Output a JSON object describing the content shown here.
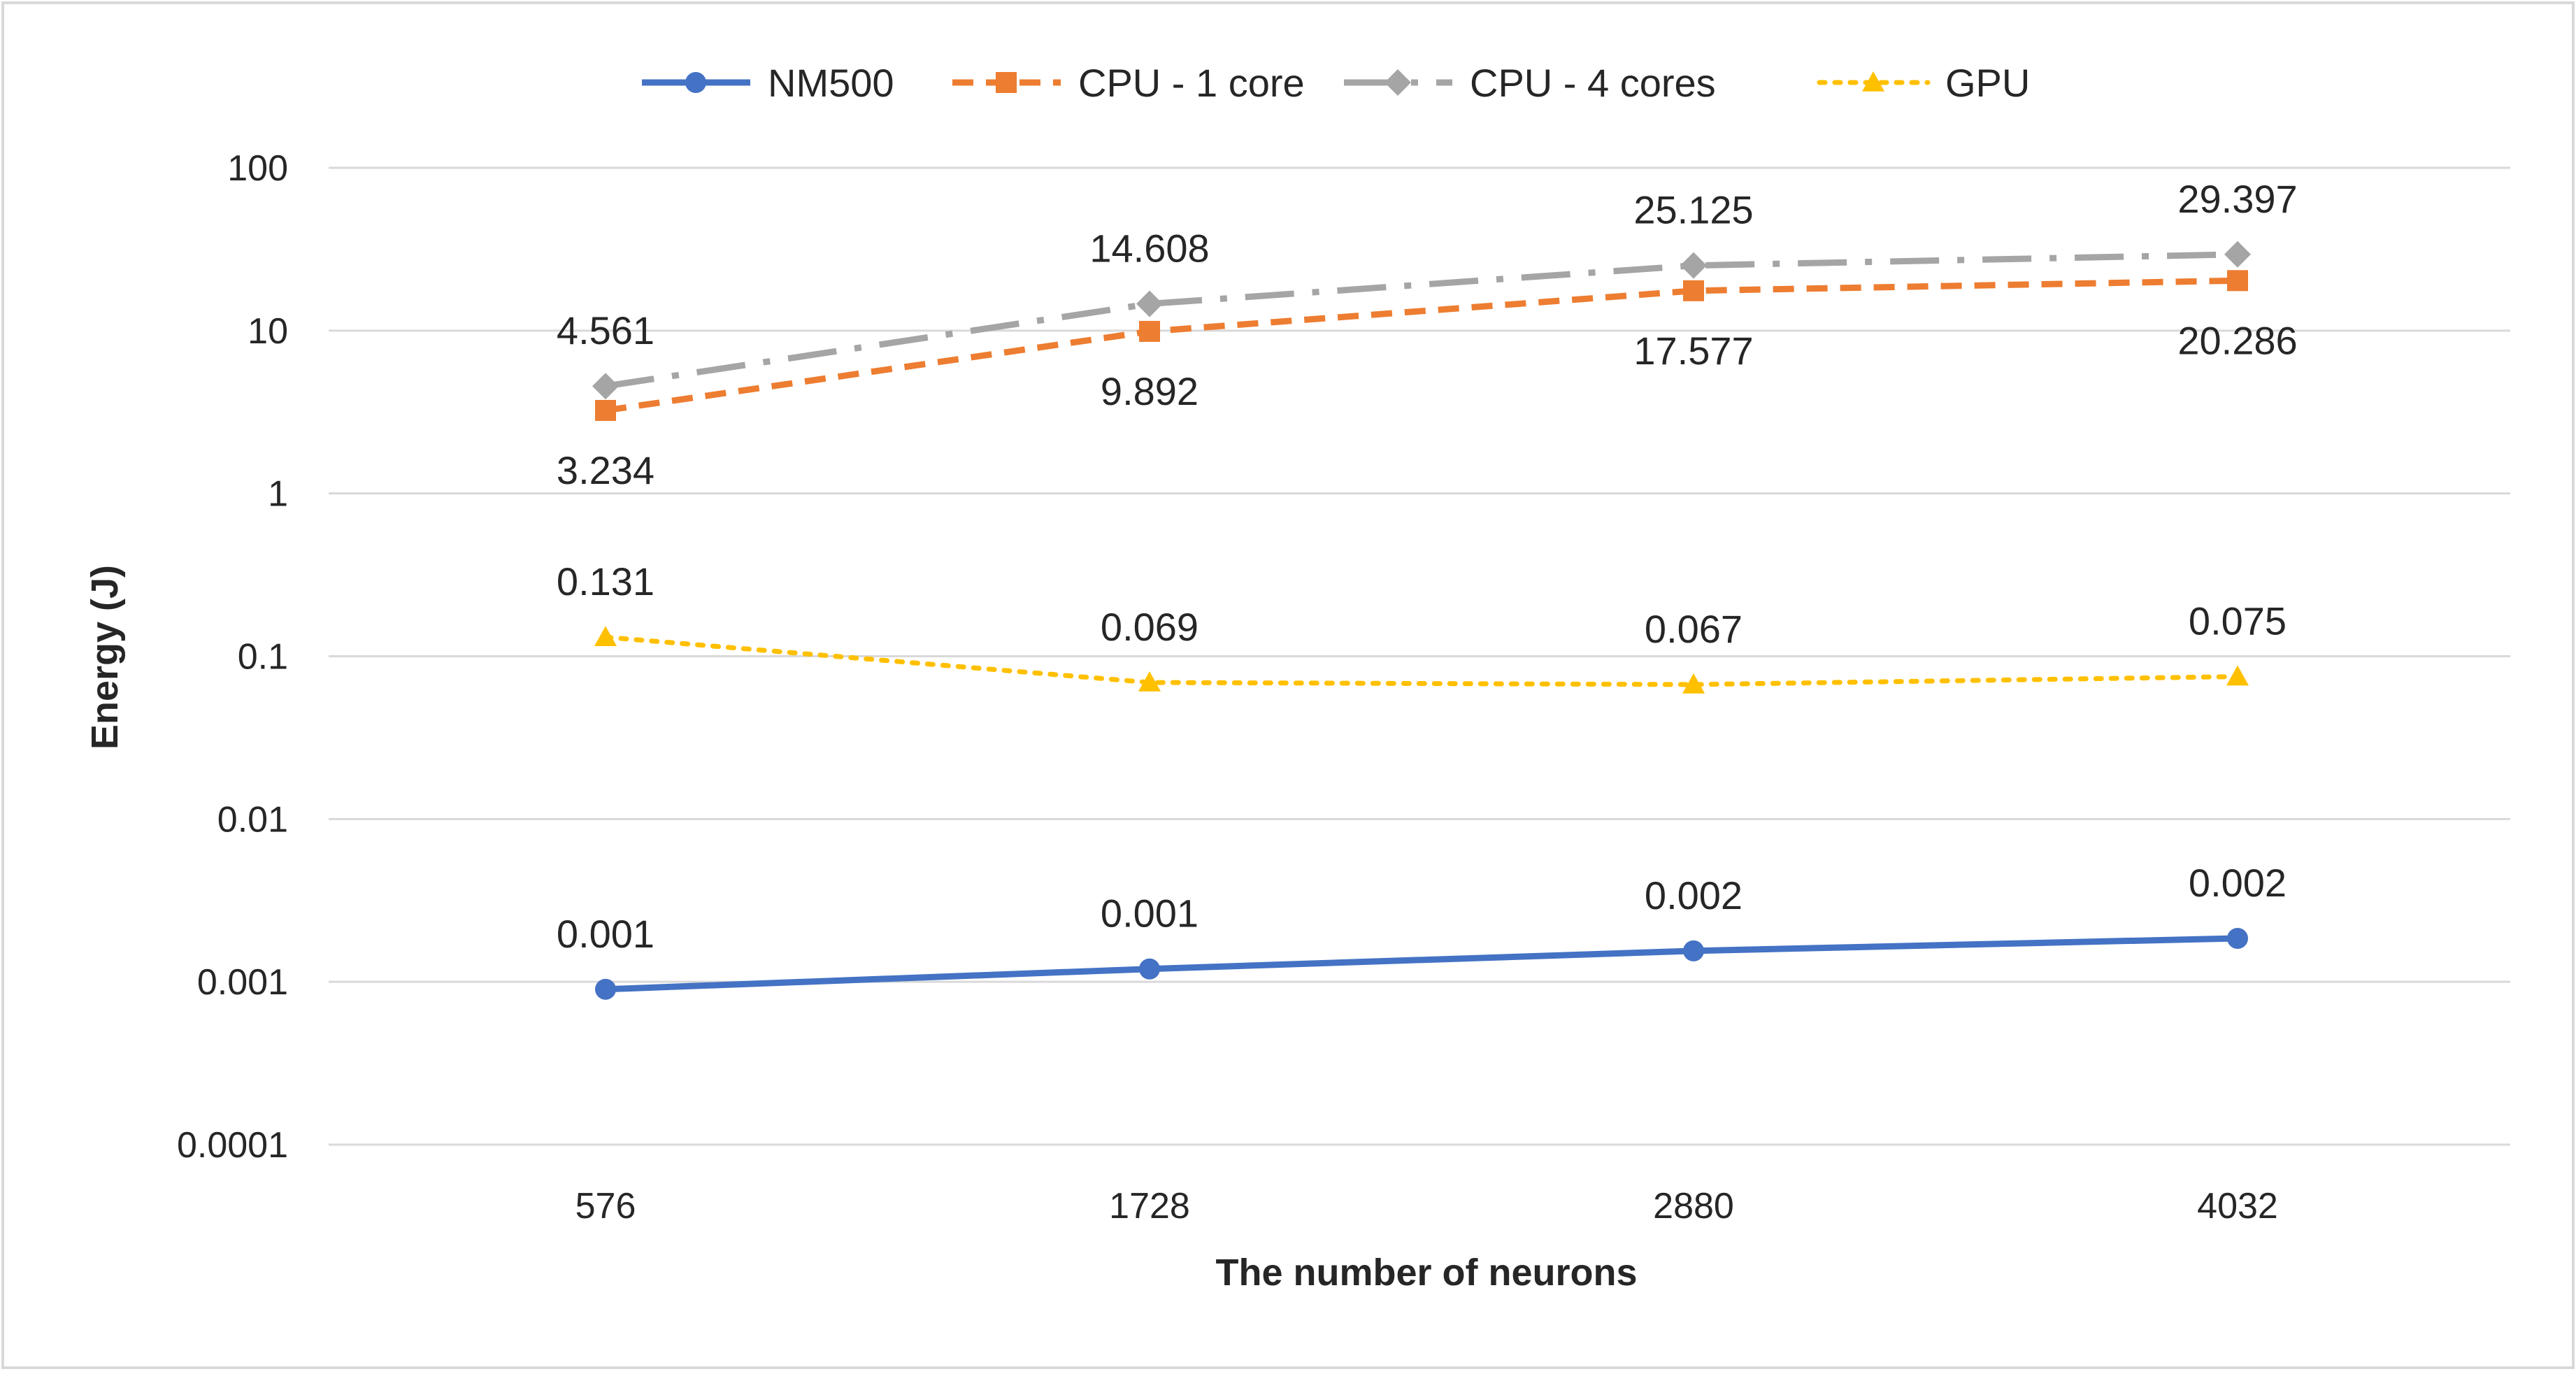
{
  "chart_data": {
    "type": "line",
    "title": "",
    "xlabel": "The number of neurons",
    "ylabel": "Energy (J)",
    "y_scale": "log",
    "ylim": [
      0.0001,
      100
    ],
    "y_ticks": [
      {
        "value": 100,
        "label": "100"
      },
      {
        "value": 10,
        "label": "10"
      },
      {
        "value": 1,
        "label": "1"
      },
      {
        "value": 0.1,
        "label": "0.1"
      },
      {
        "value": 0.01,
        "label": "0.01"
      },
      {
        "value": 0.001,
        "label": "0.001"
      },
      {
        "value": 0.0001,
        "label": "0.0001"
      }
    ],
    "categories": [
      "576",
      "1728",
      "2880",
      "4032"
    ],
    "grid": true,
    "legend_position": "top",
    "series": [
      {
        "name": "NM500",
        "color": "#4472C4",
        "line_style": "solid",
        "marker": "circle",
        "values": [
          0.0009,
          0.0012,
          0.00155,
          0.00185
        ],
        "labels": [
          "0.001",
          "0.001",
          "0.002",
          "0.002"
        ],
        "label_position": "above"
      },
      {
        "name": "CPU - 1 core",
        "color": "#ED7D31",
        "line_style": "dash",
        "marker": "square",
        "values": [
          3.234,
          9.892,
          17.577,
          20.286
        ],
        "labels": [
          "3.234",
          "9.892",
          "17.577",
          "20.286"
        ],
        "label_position": "below"
      },
      {
        "name": "CPU - 4 cores",
        "color": "#A5A5A5",
        "line_style": "dashdot",
        "marker": "diamond",
        "values": [
          4.561,
          14.608,
          25.125,
          29.397
        ],
        "labels": [
          "4.561",
          "14.608",
          "25.125",
          "29.397"
        ],
        "label_position": "above"
      },
      {
        "name": "GPU",
        "color": "#FFC000",
        "line_style": "dot",
        "marker": "triangle",
        "values": [
          0.131,
          0.069,
          0.067,
          0.075
        ],
        "labels": [
          "0.131",
          "0.069",
          "0.067",
          "0.075"
        ],
        "label_position": "above"
      }
    ]
  }
}
